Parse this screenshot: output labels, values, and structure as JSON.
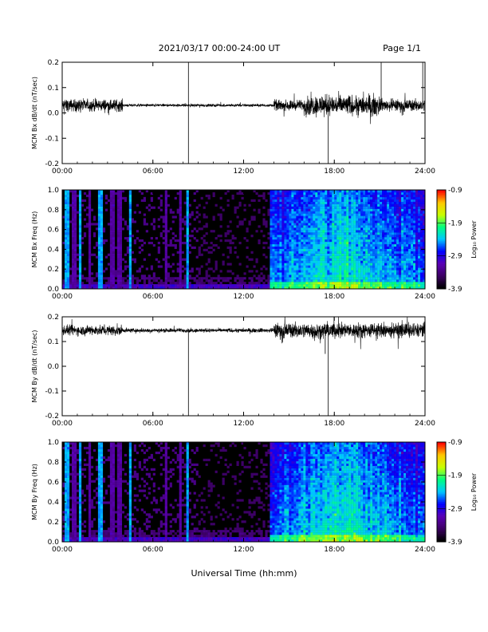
{
  "header": {
    "title": "2021/03/17  00:00-24:00 UT",
    "page": "Page 1/1"
  },
  "colors": {
    "trace": "#000000",
    "background": "#ffffff",
    "spectrogram_background": "#000000",
    "colormap": [
      "#000000",
      "#3c0064",
      "#5a00b4",
      "#0000ff",
      "#00c8ff",
      "#00ff80",
      "#c8ff00",
      "#ffc800",
      "#ff0000"
    ]
  },
  "chart_data": [
    {
      "type": "line",
      "ylabel": "MCM Bx dB/dt (nT/sec)",
      "xlim": [
        0,
        24
      ],
      "ylim": [
        -0.2,
        0.2
      ],
      "yticks": [
        -0.2,
        -0.1,
        0.0,
        0.1,
        0.2
      ],
      "ytick_labels": [
        "-0.2",
        "-0.1",
        "0.0",
        "0.1",
        "0.2"
      ],
      "xticks": [
        0,
        6,
        12,
        18,
        24
      ],
      "xtick_labels": [
        "00:00",
        "06:00",
        "12:00",
        "18:00",
        "24:00"
      ],
      "baseline": 0.03,
      "segments": [
        {
          "from": 0,
          "to": 4,
          "amplitude": 0.035
        },
        {
          "from": 4,
          "to": 14,
          "amplitude": 0.008
        },
        {
          "from": 14,
          "to": 16,
          "amplitude": 0.03
        },
        {
          "from": 16,
          "to": 21,
          "amplitude": 0.06
        },
        {
          "from": 21,
          "to": 24,
          "amplitude": 0.035
        }
      ],
      "spikes": [
        {
          "t": 8.35,
          "value": -0.2
        },
        {
          "t": 8.35,
          "value": 0.2
        },
        {
          "t": 17.6,
          "value": -0.2
        },
        {
          "t": 21.1,
          "value": 0.2
        },
        {
          "t": 23.85,
          "value": 0.2
        }
      ]
    },
    {
      "type": "heatmap",
      "ylabel": "MCM Bx Freq (Hz)",
      "xlim": [
        0,
        24
      ],
      "ylim": [
        0,
        1.0
      ],
      "yticks": [
        0.0,
        0.2,
        0.4,
        0.6,
        0.8,
        1.0
      ],
      "ytick_labels": [
        "0.0",
        "0.2",
        "0.4",
        "0.6",
        "0.8",
        "1.0"
      ],
      "xticks": [
        0,
        6,
        12,
        18,
        24
      ],
      "xtick_labels": [
        "00:00",
        "06:00",
        "12:00",
        "18:00",
        "24:00"
      ],
      "colorbar": {
        "label": "Log₁₀ Power",
        "min": -3.9,
        "max": -0.9,
        "ticks": [
          -0.9,
          -1.9,
          -2.9,
          -3.9
        ],
        "tick_labels": [
          "-0.9",
          "-1.9",
          "-2.9",
          "-3.9"
        ]
      },
      "quiet_interval": [
        0,
        13.8
      ],
      "active_interval": [
        13.8,
        24
      ],
      "bright_stripes": [
        0.3,
        1.2,
        2.5,
        4.5,
        8.3
      ],
      "dim_stripes": [
        0.8,
        1.8,
        3.3,
        3.8,
        6.9,
        7.8
      ]
    },
    {
      "type": "line",
      "ylabel": "MCM By dB/dt (nT/sec)",
      "xlim": [
        0,
        24
      ],
      "ylim": [
        -0.2,
        0.2
      ],
      "yticks": [
        -0.2,
        -0.1,
        0.0,
        0.1,
        0.2
      ],
      "ytick_labels": [
        "-0.2",
        "-0.1",
        "0.0",
        "0.1",
        "0.2"
      ],
      "xticks": [
        0,
        6,
        12,
        18,
        24
      ],
      "xtick_labels": [
        "00:00",
        "06:00",
        "12:00",
        "18:00",
        "24:00"
      ],
      "baseline": 0.145,
      "segments": [
        {
          "from": 0,
          "to": 4,
          "amplitude": 0.03
        },
        {
          "from": 4,
          "to": 14,
          "amplitude": 0.012
        },
        {
          "from": 14,
          "to": 24,
          "amplitude": 0.045
        }
      ],
      "spikes": [
        {
          "t": 8.35,
          "value": -0.2
        },
        {
          "t": 17.6,
          "value": -0.2
        },
        {
          "t": 17.4,
          "value": 0.05
        }
      ]
    },
    {
      "type": "heatmap",
      "ylabel": "MCM By Freq (Hz)",
      "xlim": [
        0,
        24
      ],
      "ylim": [
        0,
        1.0
      ],
      "yticks": [
        0.0,
        0.2,
        0.4,
        0.6,
        0.8,
        1.0
      ],
      "ytick_labels": [
        "0.0",
        "0.2",
        "0.4",
        "0.6",
        "0.8",
        "1.0"
      ],
      "xticks": [
        0,
        6,
        12,
        18,
        24
      ],
      "xtick_labels": [
        "00:00",
        "06:00",
        "12:00",
        "18:00",
        "24:00"
      ],
      "colorbar": {
        "label": "Log₁₀ Power",
        "min": -3.9,
        "max": -0.9,
        "ticks": [
          -0.9,
          -1.9,
          -2.9,
          -3.9
        ],
        "tick_labels": [
          "-0.9",
          "-1.9",
          "-2.9",
          "-3.9"
        ]
      },
      "quiet_interval": [
        0,
        13.8
      ],
      "active_interval": [
        13.8,
        24
      ],
      "bright_stripes": [
        0.3,
        1.2,
        2.5,
        4.5,
        8.3
      ],
      "dim_stripes": [
        0.8,
        1.8,
        3.3,
        3.8,
        6.9,
        7.8
      ]
    }
  ],
  "xlabel": "Universal Time (hh:mm)"
}
